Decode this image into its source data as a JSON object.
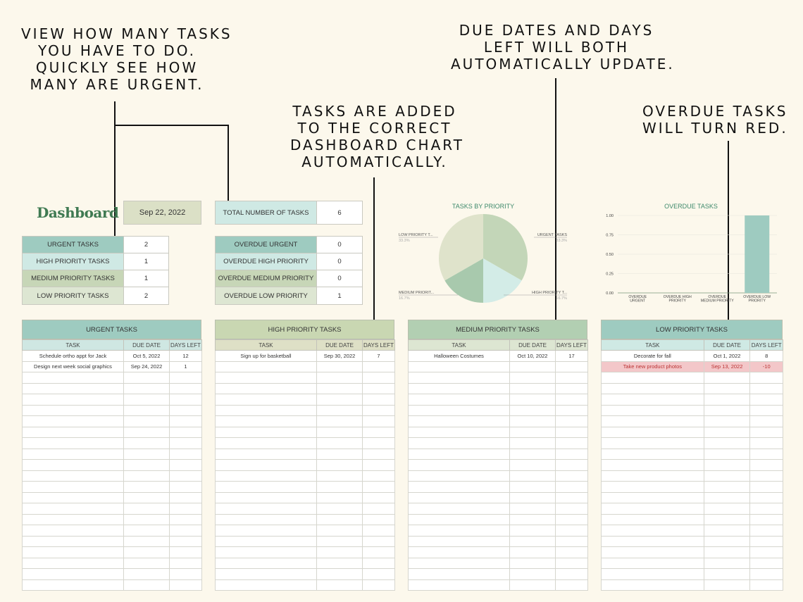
{
  "callouts": {
    "count": [
      "VIEW HOW MANY TASKS",
      "YOU HAVE TO DO.",
      "QUICKLY SEE HOW",
      "MANY ARE URGENT."
    ],
    "added": [
      "TASKS ARE ADDED",
      "TO THE CORRECT",
      "DASHBOARD CHART",
      "AUTOMATICALLY."
    ],
    "dates": [
      "DUE DATES AND DAYS",
      "LEFT WILL BOTH",
      "AUTOMATICALLY UPDATE."
    ],
    "overdue": [
      "OVERDUE TASKS",
      "WILL TURN RED."
    ]
  },
  "dashboard": {
    "title": "Dashboard",
    "date": "Sep 22, 2022",
    "total_label": "TOTAL NUMBER OF TASKS",
    "total_value": "6",
    "priority_counts": [
      {
        "label": "URGENT TASKS",
        "value": "2"
      },
      {
        "label": "HIGH PRIORITY TASKS",
        "value": "1"
      },
      {
        "label": "MEDIUM PRIORITY TASKS",
        "value": "1"
      },
      {
        "label": "LOW PRIORITY TASKS",
        "value": "2"
      }
    ],
    "overdue_counts": [
      {
        "label": "OVERDUE URGENT",
        "value": "0"
      },
      {
        "label": "OVERDUE HIGH PRIORITY",
        "value": "0"
      },
      {
        "label": "OVERDUE MEDIUM PRIORITY",
        "value": "0"
      },
      {
        "label": "OVERDUE LOW PRIORITY",
        "value": "1"
      }
    ]
  },
  "chart_data": [
    {
      "type": "pie",
      "title": "TASKS BY PRIORITY",
      "slices": [
        {
          "label": "URGENT TASKS",
          "value": 33.3,
          "display": "33.3%",
          "color": "#c3d6b8"
        },
        {
          "label": "HIGH PRIORITY T...",
          "value": 16.7,
          "display": "16.7%",
          "color": "#d3ece7"
        },
        {
          "label": "MEDIUM PRIORIT...",
          "value": 16.7,
          "display": "16.7%",
          "color": "#a8c9ad"
        },
        {
          "label": "LOW PRIORITY T...",
          "value": 33.3,
          "display": "33.3%",
          "color": "#dfe3cb"
        }
      ]
    },
    {
      "type": "bar",
      "title": "OVERDUE TASKS",
      "categories": [
        [
          "OVERDUE",
          "URGENT"
        ],
        [
          "OVERDUE HIGH",
          "PRIORITY"
        ],
        [
          "OVERDUE",
          "MEDIUM PRIORITY"
        ],
        [
          "OVERDUE LOW",
          "PRIORITY"
        ]
      ],
      "values": [
        0,
        0,
        0,
        1
      ],
      "ylim": [
        0,
        1
      ],
      "yticks": [
        "1.00",
        "0.75",
        "0.50",
        "0.25",
        "0.00"
      ],
      "bar_color": "#9ecbc0",
      "grid": true
    }
  ],
  "columns": {
    "task": "TASK",
    "due": "DUE DATE",
    "days": "DAYS LEFT"
  },
  "panels": [
    {
      "title": "URGENT TASKS",
      "head_color": "#9ecbc0",
      "sub_color": "#cfe7e2",
      "rows": [
        {
          "task": "Schedule ortho appt for Jack",
          "due": "Oct 5, 2022",
          "days": "12"
        },
        {
          "task": "Design next week social graphics",
          "due": "Sep 24, 2022",
          "days": "1"
        }
      ]
    },
    {
      "title": "HIGH PRIORITY TASKS",
      "head_color": "#c9d7b2",
      "sub_color": "#dee0c6",
      "rows": [
        {
          "task": "Sign up for basketball",
          "due": "Sep 30, 2022",
          "days": "7"
        }
      ]
    },
    {
      "title": "MEDIUM PRIORITY TASKS",
      "head_color": "#b2cfb2",
      "sub_color": "#dde6d2",
      "rows": [
        {
          "task": "Halloween Costumes",
          "due": "Oct 10, 2022",
          "days": "17"
        }
      ]
    },
    {
      "title": "LOW PRIORITY TASKS",
      "head_color": "#9ecbc0",
      "sub_color": "#cfe9e4",
      "rows": [
        {
          "task": "Decorate for fall",
          "due": "Oct 1, 2022",
          "days": "8",
          "overdue": false
        },
        {
          "task": "Take new product photos",
          "due": "Sep 13, 2022",
          "days": "-10",
          "overdue": true
        }
      ]
    }
  ]
}
